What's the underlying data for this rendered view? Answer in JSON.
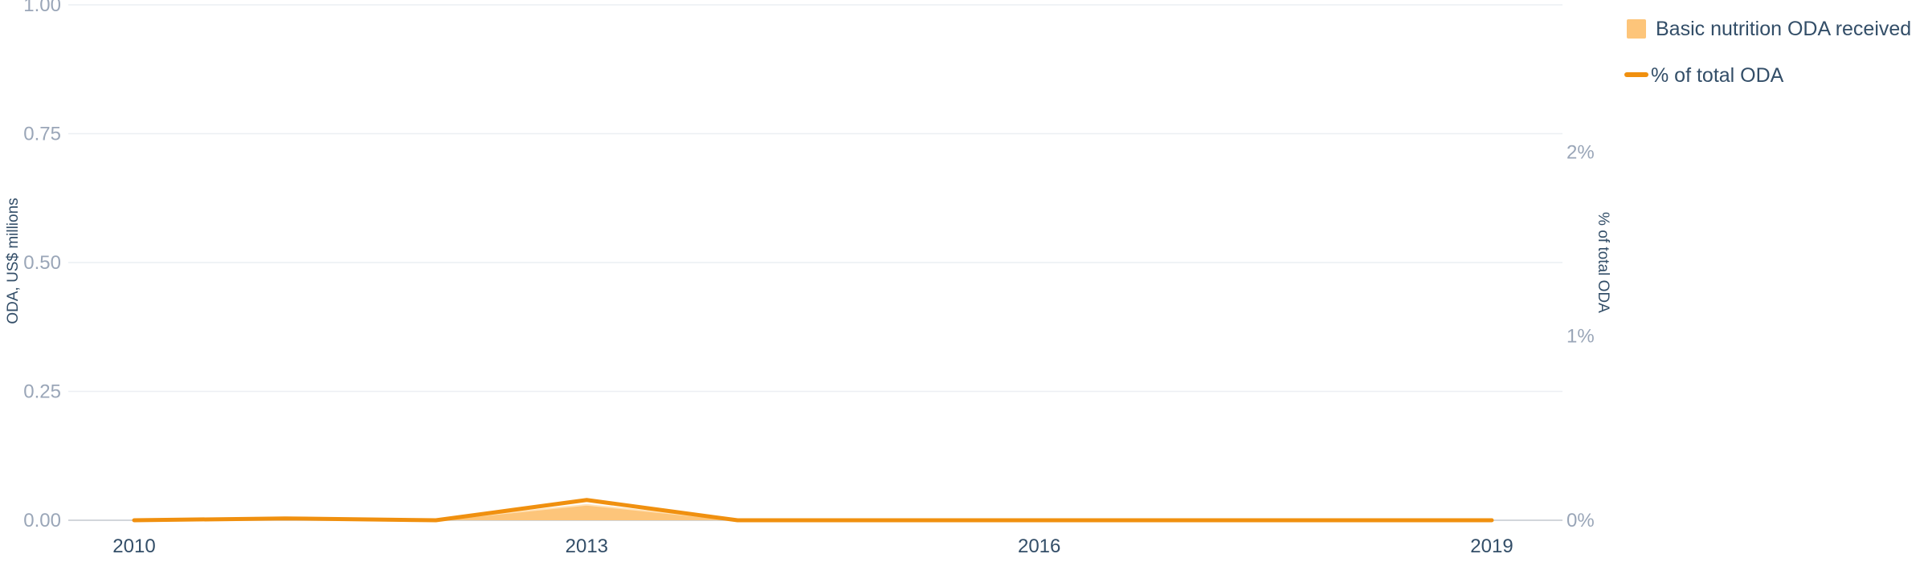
{
  "chart_data": {
    "type": "area",
    "x": [
      2010,
      2011,
      2012,
      2013,
      2014,
      2015,
      2016,
      2017,
      2018,
      2019
    ],
    "xticks": [
      "2010",
      "2013",
      "2016",
      "2019"
    ],
    "series": [
      {
        "name": "Basic nutrition ODA received",
        "type": "area",
        "axis": "left",
        "values": [
          0,
          0.002,
          0,
          0.03,
          0,
          0,
          0,
          0,
          0,
          0
        ]
      },
      {
        "name": "% of total ODA",
        "type": "line",
        "axis": "right",
        "values": [
          0,
          0.01,
          0,
          0.11,
          0,
          0,
          0,
          0,
          0,
          0
        ]
      }
    ],
    "y_left": {
      "label": "ODA, US$ millions",
      "ylim": [
        0,
        1
      ],
      "ticks": [
        "0.00",
        "0.25",
        "0.50",
        "0.75",
        "1.00"
      ]
    },
    "y_right": {
      "label": "% of total ODA",
      "ylim": [
        0,
        2.8
      ],
      "ticks": [
        "0%",
        "1%",
        "2%"
      ]
    },
    "grid": true,
    "legend_position": "top-right",
    "colors": {
      "area_fill": "#fdc57a",
      "line": "#f0900f",
      "grid": "#eceff3",
      "axis": "#c4c8cf"
    }
  }
}
